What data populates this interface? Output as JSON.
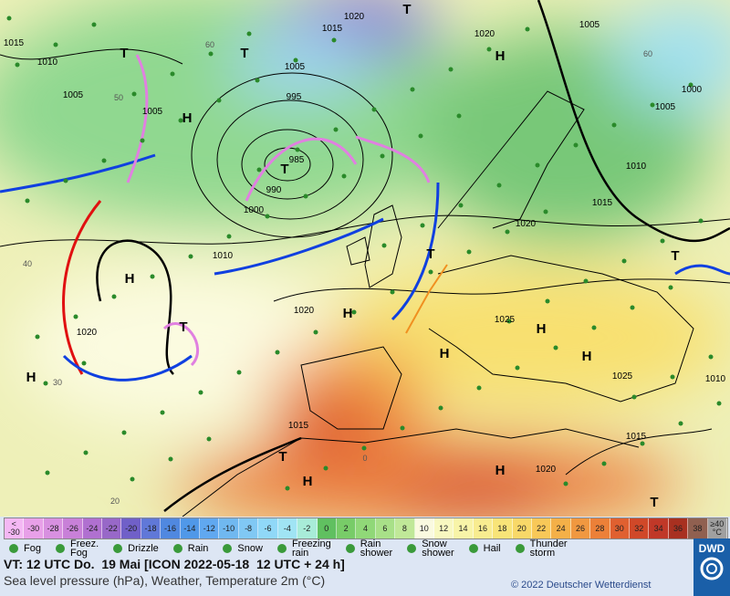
{
  "map": {
    "isobar_labels": [
      "1015",
      "1010",
      "1005",
      "1005",
      "995",
      "985",
      "990",
      "1000",
      "1010",
      "1020",
      "1020",
      "1025",
      "1015",
      "1020",
      "1015",
      "1025",
      "1010",
      "1015",
      "1020",
      "1010",
      "1005",
      "1000",
      "1005",
      "1020",
      "1005",
      "1015",
      "1020"
    ],
    "centers": [
      "H",
      "H",
      "H",
      "H",
      "H",
      "H",
      "H",
      "H",
      "H",
      "H",
      "T",
      "T",
      "T",
      "T",
      "T",
      "T",
      "T",
      "T",
      "T"
    ],
    "grid_labels": [
      "60",
      "50",
      "40",
      "30",
      "20",
      "0",
      "60"
    ]
  },
  "color_scale": {
    "labels": [
      "<\n-30",
      "-30",
      "-28",
      "-26",
      "-24",
      "-22",
      "-20",
      "-18",
      "-16",
      "-14",
      "-12",
      "-10",
      "-8",
      "-6",
      "-4",
      "-2",
      "0",
      "2",
      "4",
      "6",
      "8",
      "10",
      "12",
      "14",
      "16",
      "18",
      "20",
      "22",
      "24",
      "26",
      "28",
      "30",
      "32",
      "34",
      "36",
      "38",
      "≥40\n°C"
    ],
    "colors": [
      "#f4b8f4",
      "#e8a0e8",
      "#d890e0",
      "#c880d8",
      "#b070d0",
      "#9868c8",
      "#7060c8",
      "#6078d8",
      "#5088e0",
      "#5098e8",
      "#60a8f0",
      "#70b8f0",
      "#80c8f4",
      "#90d8f8",
      "#a0e4f4",
      "#a8ecd8",
      "#60c060",
      "#78cc68",
      "#90d878",
      "#a8e088",
      "#c0e898",
      "#fafae0",
      "#f8f8c0",
      "#f8f4a8",
      "#f8ec90",
      "#f8e478",
      "#f8d868",
      "#f8c858",
      "#f4b048",
      "#f09840",
      "#ec8038",
      "#e06030",
      "#d04828",
      "#c03828",
      "#a83020",
      "#906050",
      "#a0a0a0"
    ]
  },
  "weather_legend": [
    "Fog",
    "Freez.\nFog",
    "Drizzle",
    "Rain",
    "Snow",
    "Freezing\nrain",
    "Rain\nshower",
    "Snow\nshower",
    "Hail",
    "Thunder\nstorm"
  ],
  "footer": {
    "valid_time": "VT: 12 UTC Do.  19 Mai [ICON 2022-05-18  12 UTC + 24 h]",
    "description": "Sea level pressure (hPa), Weather, Temperature 2m (°C)",
    "copyright": "© 2022 Deutscher Wetterdienst",
    "logo": "DWD"
  }
}
